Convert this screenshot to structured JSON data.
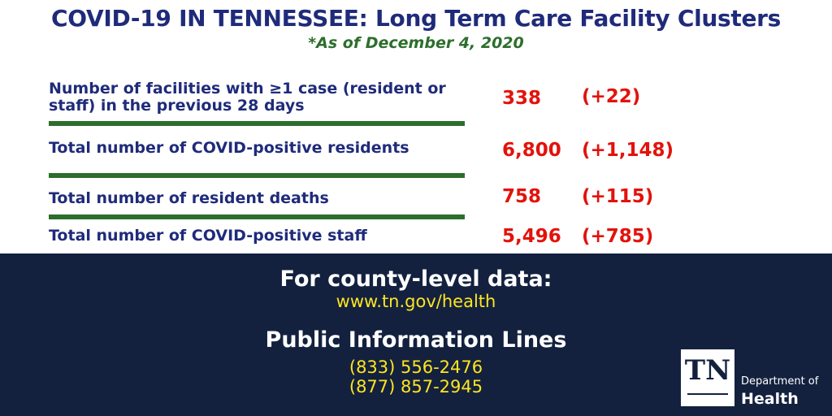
{
  "header": {
    "title": "COVID-19 IN TENNESSEE: Long Term Care Facility Clusters",
    "subtitle": "*As of December 4, 2020"
  },
  "stats": [
    {
      "label": "Number of facilities with ≥1 case (resident or staff) in the previous 28 days",
      "value": "338",
      "change": "(+22)"
    },
    {
      "label": "Total number of COVID-positive residents",
      "value": "6,800",
      "change": "(+1,148)"
    },
    {
      "label": "Total number of resident deaths",
      "value": "758",
      "change": "(+115)"
    },
    {
      "label": "Total number of COVID-positive staff",
      "value": "5,496",
      "change": "(+785)"
    }
  ],
  "footer": {
    "county_heading": "For county-level data:",
    "county_url": "www.tn.gov/health",
    "pil_heading": "Public Information Lines",
    "phones": [
      "(833) 556-2476",
      "(877) 857-2945"
    ]
  },
  "logo": {
    "mark": "TN",
    "line1": "Department of",
    "line2": "Health"
  },
  "colors": {
    "title_blue": "#1f2b7a",
    "subtitle_green": "#2c6e2c",
    "value_red": "#e3120b",
    "footer_navy": "#13213f",
    "link_yellow": "#ffe51f"
  }
}
